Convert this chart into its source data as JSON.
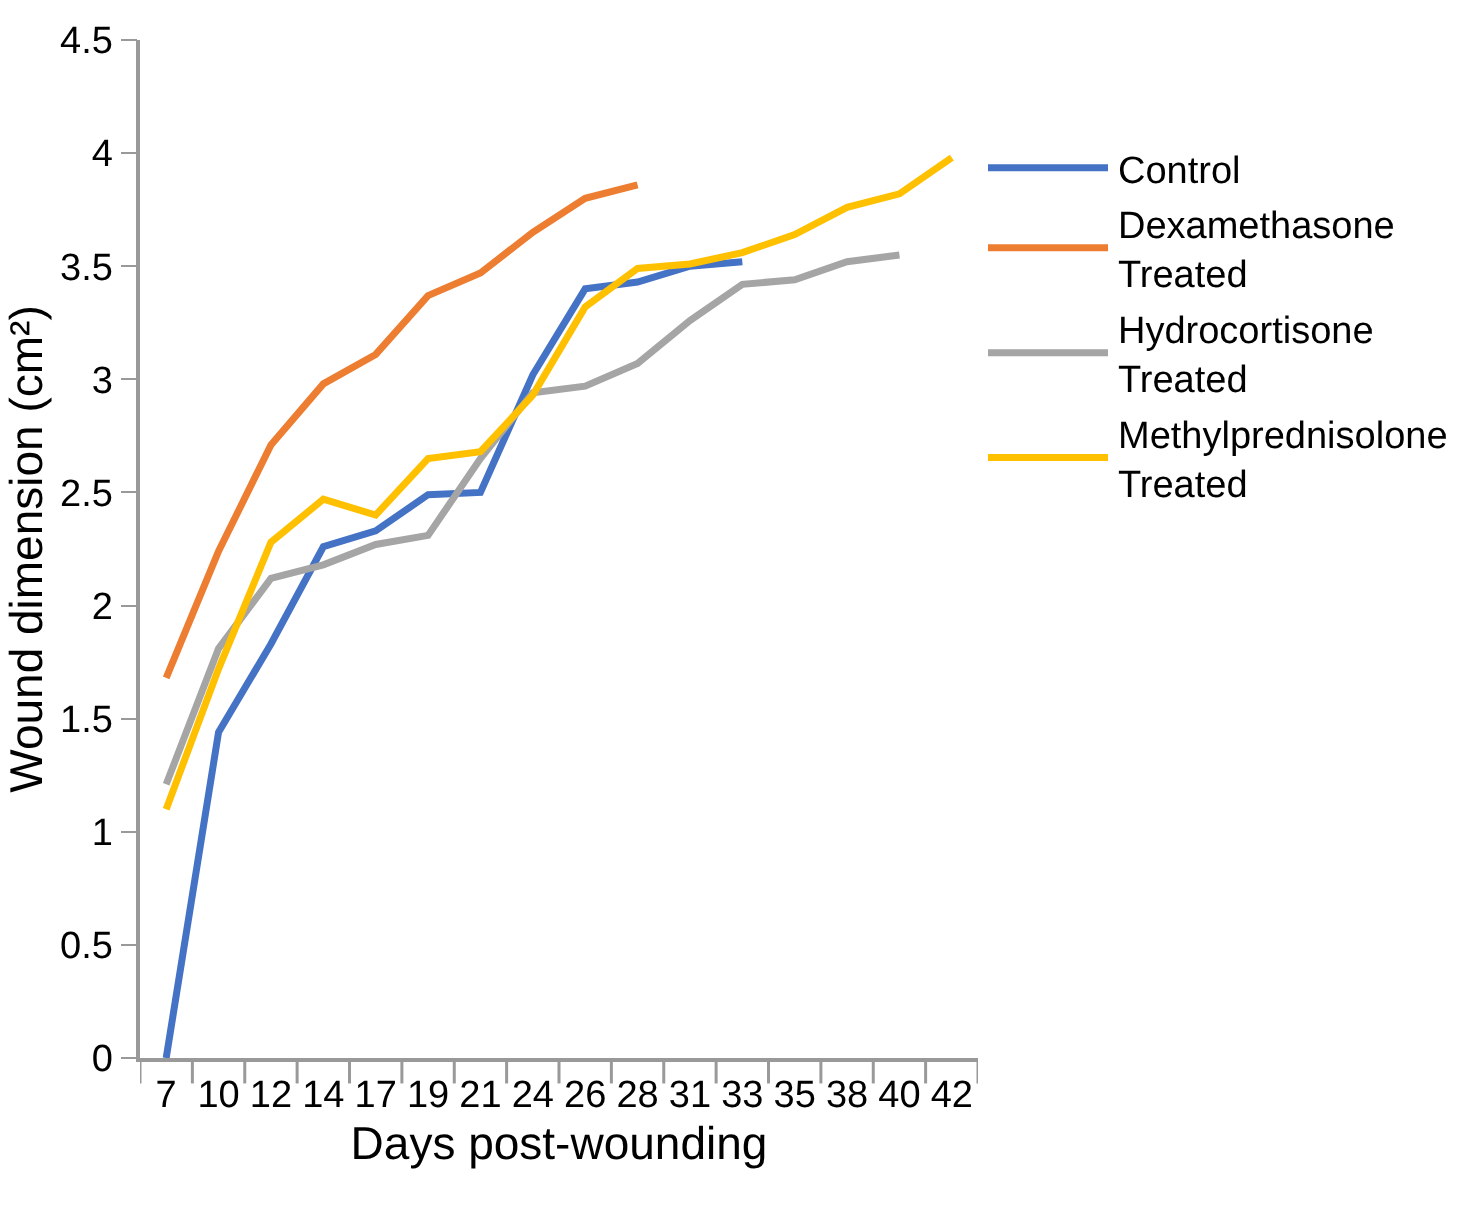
{
  "chart_data": {
    "type": "line",
    "xlabel": "Days post-wounding",
    "ylabel": "Wound dimension (cm²)",
    "categories": [
      "7",
      "10",
      "12",
      "14",
      "17",
      "19",
      "21",
      "24",
      "26",
      "28",
      "31",
      "33",
      "35",
      "38",
      "40",
      "42"
    ],
    "series": [
      {
        "name": "Control",
        "color": "#4472c4",
        "values": [
          0,
          1.44,
          1.83,
          2.26,
          2.33,
          2.49,
          2.5,
          3.02,
          3.4,
          3.43,
          3.5,
          3.52,
          null,
          null,
          null,
          null
        ]
      },
      {
        "name": "Dexamethasone Treated",
        "color": "#ed7d31",
        "values": [
          1.68,
          2.24,
          2.71,
          2.98,
          3.11,
          3.37,
          3.47,
          3.65,
          3.8,
          3.86,
          null,
          null,
          null,
          null,
          null,
          null
        ]
      },
      {
        "name": "Hydrocortisone Treated",
        "color": "#a5a5a5",
        "values": [
          1.21,
          1.81,
          2.12,
          2.18,
          2.27,
          2.31,
          2.65,
          2.94,
          2.97,
          3.07,
          3.26,
          3.42,
          3.44,
          3.52,
          3.55,
          null
        ]
      },
      {
        "name": "Methylprednisolone Treated",
        "color": "#ffc000",
        "values": [
          1.1,
          1.72,
          2.28,
          2.47,
          2.4,
          2.65,
          2.68,
          2.93,
          3.32,
          3.49,
          3.51,
          3.56,
          3.64,
          3.76,
          3.82,
          3.98
        ]
      }
    ],
    "ylim": [
      0,
      4.5
    ],
    "yticks": [
      0,
      0.5,
      1,
      1.5,
      2,
      2.5,
      3,
      3.5,
      4,
      4.5
    ],
    "grid": false,
    "legend": "right",
    "marker": "none",
    "line_style": "solid"
  }
}
